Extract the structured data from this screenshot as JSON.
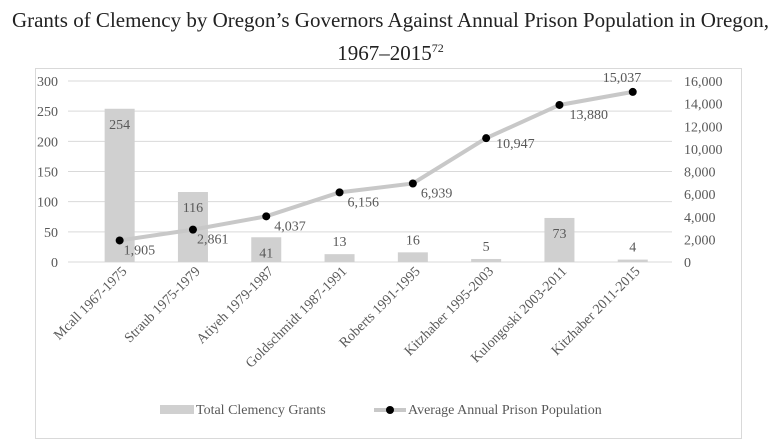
{
  "chart_data": {
    "type": "bar+line",
    "title": "Grants of Clemency by Oregon’s Governors Against Annual Prison Population in Oregon, 1967–2015",
    "title_footnote": "72",
    "categories": [
      "Mcall 1967-1975",
      "Straub 1975-1979",
      "Atiyeh 1979-1987",
      "Goldschmidt 1987-1991",
      "Roberts 1991-1995",
      "Kitzhaber 1995-2003",
      "Kulongoski 2003-2011",
      "Kitzhaber 2011-2015"
    ],
    "series": [
      {
        "name": "Total Clemency Grants",
        "type": "bar",
        "axis": "left",
        "color": "#d0d0d0",
        "values": [
          254,
          116,
          41,
          13,
          16,
          5,
          73,
          4
        ],
        "labels": [
          "254",
          "116",
          "41",
          "13",
          "16",
          "5",
          "73",
          "4"
        ]
      },
      {
        "name": "Average Annual Prison Population",
        "type": "line",
        "axis": "right",
        "color": "#c8c8c8",
        "marker_color": "#000000",
        "values": [
          1905,
          2861,
          4037,
          6156,
          6939,
          10947,
          13880,
          15037
        ],
        "labels": [
          "1,905",
          "2,861",
          "4,037",
          "6,156",
          "6,939",
          "10,947",
          "13,880",
          "15,037"
        ]
      }
    ],
    "left_axis": {
      "ylim": [
        0,
        300
      ],
      "ticks": [
        "0",
        "50",
        "100",
        "150",
        "200",
        "250",
        "300"
      ]
    },
    "right_axis": {
      "ylim": [
        0,
        16000
      ],
      "ticks": [
        "0",
        "2,000",
        "4,000",
        "6,000",
        "8,000",
        "10,000",
        "12,000",
        "14,000",
        "16,000"
      ]
    },
    "grid": true,
    "legend": "bottom"
  }
}
